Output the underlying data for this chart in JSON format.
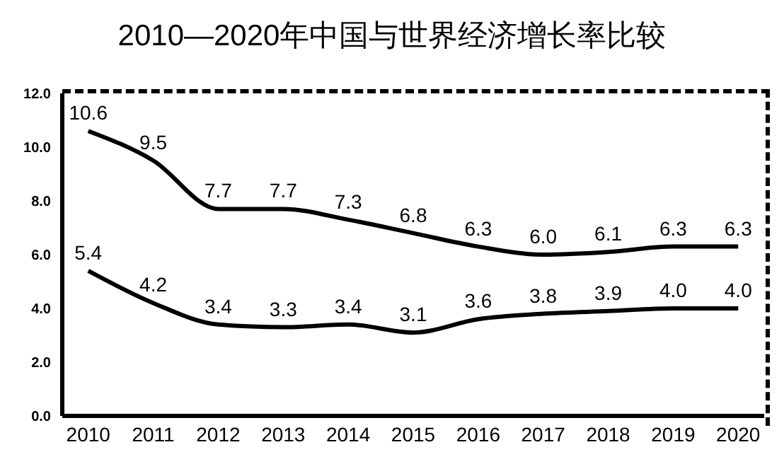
{
  "chart_data": {
    "type": "line",
    "title": "2010—2020年中国与世界经济增长率比较",
    "categories": [
      "2010",
      "2011",
      "2012",
      "2013",
      "2014",
      "2015",
      "2016",
      "2017",
      "2018",
      "2019",
      "2020"
    ],
    "series": [
      {
        "color": "#000000",
        "values": [
          10.6,
          9.5,
          7.7,
          7.7,
          7.3,
          6.8,
          6.3,
          6.0,
          6.1,
          6.3,
          6.3
        ],
        "value_labels": [
          "10.6",
          "9.5",
          "7.7",
          "7.7",
          "7.3",
          "6.8",
          "6.3",
          "6.0",
          "6.1",
          "6.3",
          "6.3"
        ]
      },
      {
        "color": "#000000",
        "values": [
          5.4,
          4.2,
          3.4,
          3.3,
          3.4,
          3.1,
          3.6,
          3.8,
          3.9,
          4.0,
          4.0
        ],
        "value_labels": [
          "5.4",
          "4.2",
          "3.4",
          "3.3",
          "3.4",
          "3.1",
          "3.6",
          "3.8",
          "3.9",
          "4.0",
          "4.0"
        ]
      }
    ],
    "ylim": [
      0,
      12
    ],
    "yticks": [
      {
        "value": 0,
        "label": "0.0"
      },
      {
        "value": 2,
        "label": "2.0"
      },
      {
        "value": 4,
        "label": "4.0"
      },
      {
        "value": 6,
        "label": "6.0"
      },
      {
        "value": 8,
        "label": "8.0"
      },
      {
        "value": 10,
        "label": "10.0"
      },
      {
        "value": 12,
        "label": "12.0"
      }
    ],
    "grid": false,
    "marker": "none",
    "line_style": "solid"
  }
}
